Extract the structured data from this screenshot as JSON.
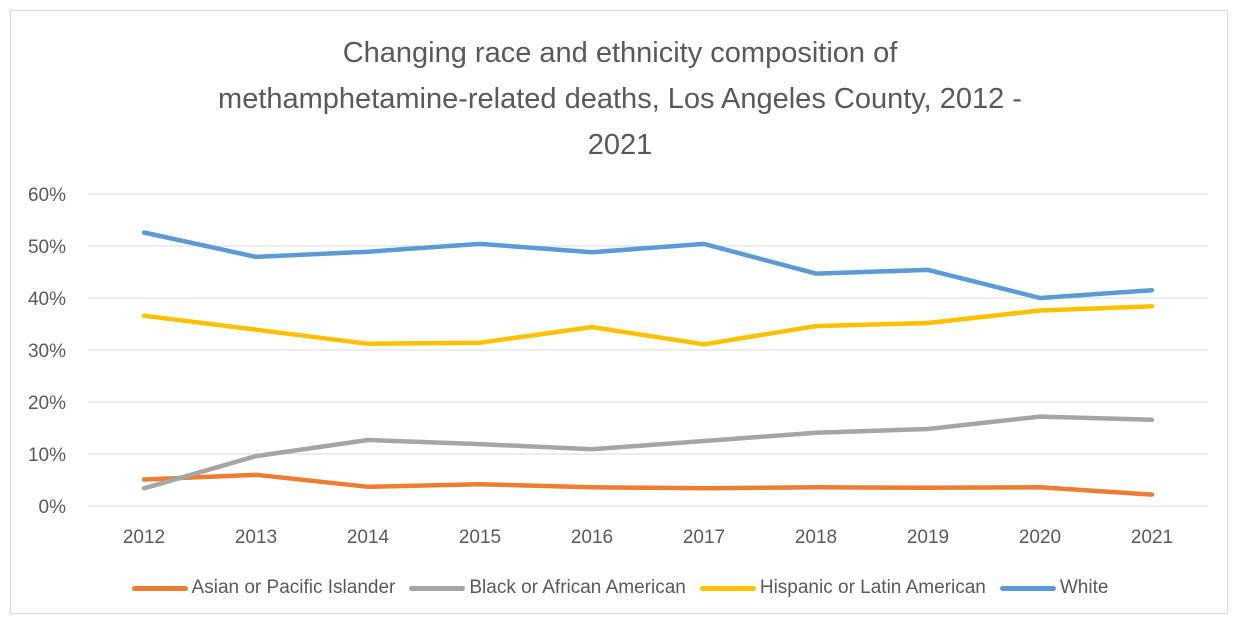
{
  "chart_data": {
    "type": "line",
    "title_lines": [
      "Changing race and ethnicity composition of",
      "methamphetamine-related deaths, Los Angeles County, 2012 -",
      "2021"
    ],
    "xlabel": "",
    "ylabel": "",
    "categories": [
      "2012",
      "2013",
      "2014",
      "2015",
      "2016",
      "2017",
      "2018",
      "2019",
      "2020",
      "2021"
    ],
    "y_ticks": [
      0,
      10,
      20,
      30,
      40,
      50,
      60
    ],
    "y_tick_labels": [
      "0%",
      "10%",
      "20%",
      "30%",
      "40%",
      "50%",
      "60%"
    ],
    "ylim": [
      0,
      60
    ],
    "grid": true,
    "legend_position": "bottom",
    "series": [
      {
        "name": "Asian or Pacific Islander",
        "color": "#ed7d31",
        "values": [
          5.1,
          6.0,
          3.7,
          4.2,
          3.6,
          3.4,
          3.6,
          3.5,
          3.6,
          2.2
        ]
      },
      {
        "name": "Black or African American",
        "color": "#a5a5a5",
        "values": [
          3.4,
          9.6,
          12.7,
          11.9,
          10.9,
          12.5,
          14.1,
          14.8,
          17.2,
          16.6
        ]
      },
      {
        "name": "Hispanic or Latin American",
        "color": "#ffc000",
        "values": [
          36.6,
          33.9,
          31.2,
          31.4,
          34.4,
          31.1,
          34.6,
          35.2,
          37.6,
          38.4
        ]
      },
      {
        "name": "White",
        "color": "#5b9bd5",
        "values": [
          52.6,
          47.9,
          48.9,
          50.4,
          48.8,
          50.4,
          44.7,
          45.4,
          40.0,
          41.5
        ]
      }
    ]
  }
}
